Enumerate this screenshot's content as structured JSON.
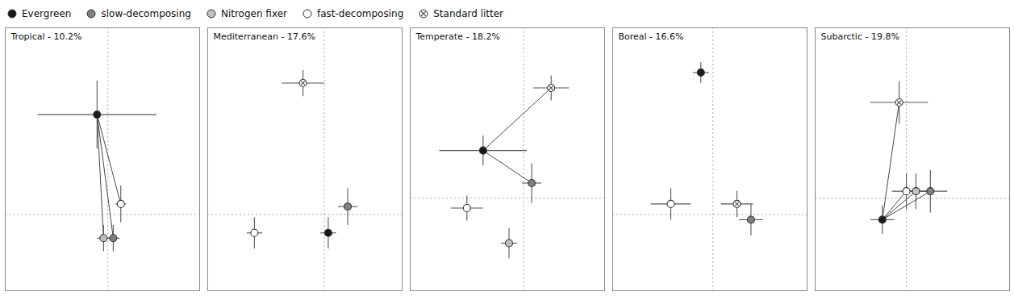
{
  "chart_data": [
    {
      "type": "scatter",
      "title": "Tropical - 10.2%",
      "xlim": [
        -0.85,
        0.95
      ],
      "ylim": [
        -0.55,
        0.45
      ],
      "tick_labels": false,
      "legend": "upper left",
      "hline": -0.26,
      "vline": 0.1,
      "series": [
        {
          "name": "Evergreen",
          "color": "#1a1a1a",
          "marker": "circle",
          "x": [
            0.0
          ],
          "values": [
            0.12
          ],
          "xerr": [
            0.55
          ],
          "yerr": [
            0.13
          ]
        },
        {
          "name": "slow-decomposing",
          "color": "#808080",
          "marker": "circle",
          "x": [
            0.15
          ],
          "values": [
            -0.35
          ],
          "xerr": [
            0.06
          ],
          "yerr": [
            0.05
          ]
        },
        {
          "name": "Nitrogen fixer",
          "color": "#c0c0c0",
          "marker": "circle",
          "x": [
            0.06
          ],
          "values": [
            -0.35
          ],
          "xerr": [
            0.06
          ],
          "yerr": [
            0.05
          ]
        },
        {
          "name": "fast-decomposing",
          "color": "#ffffff",
          "marker": "circle",
          "x": [
            0.22
          ],
          "values": [
            -0.22
          ],
          "xerr": [
            0.05
          ],
          "yerr": [
            0.07
          ]
        }
      ],
      "links": [
        [
          "Evergreen",
          "slow-decomposing"
        ],
        [
          "Evergreen",
          "Nitrogen fixer"
        ],
        [
          "Evergreen",
          "fast-decomposing"
        ]
      ]
    },
    {
      "type": "scatter",
      "title": "Mediterranean - 17.6%",
      "xlim": [
        -0.42,
        0.58
      ],
      "ylim": [
        -0.55,
        0.45
      ],
      "tick_labels": false,
      "legend": "upper left",
      "hline": -0.26,
      "vline": 0.18,
      "series": [
        {
          "name": "Evergreen",
          "color": "#1a1a1a",
          "marker": "circle",
          "x": [
            0.2
          ],
          "values": [
            -0.33
          ],
          "xerr": [
            0.04
          ],
          "yerr": [
            0.06
          ]
        },
        {
          "name": "slow-decomposing",
          "color": "#808080",
          "marker": "circle",
          "x": [
            0.3
          ],
          "values": [
            -0.23
          ],
          "xerr": [
            0.05
          ],
          "yerr": [
            0.07
          ]
        },
        {
          "name": "fast-decomposing",
          "color": "#ffffff",
          "marker": "circle",
          "x": [
            -0.18
          ],
          "values": [
            -0.33
          ],
          "xerr": [
            0.04
          ],
          "yerr": [
            0.06
          ]
        },
        {
          "name": "Standard litter",
          "color": "#ffffff",
          "marker": "circle-x",
          "x": [
            0.07
          ],
          "values": [
            0.24
          ],
          "xerr": [
            0.11
          ],
          "yerr": [
            0.05
          ]
        }
      ],
      "links": []
    },
    {
      "type": "scatter",
      "title": "Temperate - 18.2%",
      "xlim": [
        -0.65,
        0.55
      ],
      "ylim": [
        -0.63,
        0.42
      ],
      "tick_labels": false,
      "legend": "upper left",
      "hline": -0.26,
      "vline": 0.05,
      "series": [
        {
          "name": "Evergreen",
          "color": "#1a1a1a",
          "marker": "circle",
          "x": [
            -0.2
          ],
          "values": [
            -0.07
          ],
          "xerr": [
            0.27
          ],
          "yerr": [
            0.06
          ]
        },
        {
          "name": "slow-decomposing",
          "color": "#808080",
          "marker": "circle",
          "x": [
            0.1
          ],
          "values": [
            -0.2
          ],
          "xerr": [
            0.06
          ],
          "yerr": [
            0.08
          ]
        },
        {
          "name": "Nitrogen fixer",
          "color": "#c0c0c0",
          "marker": "circle",
          "x": [
            -0.04
          ],
          "values": [
            -0.44
          ],
          "xerr": [
            0.05
          ],
          "yerr": [
            0.06
          ]
        },
        {
          "name": "fast-decomposing",
          "color": "#ffffff",
          "marker": "circle",
          "x": [
            -0.3
          ],
          "values": [
            -0.3
          ],
          "xerr": [
            0.1
          ],
          "yerr": [
            0.05
          ]
        },
        {
          "name": "Standard litter",
          "color": "#ffffff",
          "marker": "circle-x",
          "x": [
            0.22
          ],
          "values": [
            0.18
          ],
          "xerr": [
            0.11
          ],
          "yerr": [
            0.05
          ]
        }
      ],
      "links": [
        [
          "Evergreen",
          "slow-decomposing"
        ],
        [
          "Evergreen",
          "Standard litter"
        ]
      ]
    },
    {
      "type": "scatter",
      "title": "Boreal - 16.6%",
      "xlim": [
        -0.42,
        0.55
      ],
      "ylim": [
        -0.55,
        0.45
      ],
      "tick_labels": false,
      "legend": "upper left",
      "hline": -0.26,
      "vline": 0.08,
      "series": [
        {
          "name": "Evergreen",
          "color": "#1a1a1a",
          "marker": "circle",
          "x": [
            0.02
          ],
          "values": [
            0.28
          ],
          "xerr": [
            0.04
          ],
          "yerr": [
            0.04
          ]
        },
        {
          "name": "slow-decomposing",
          "color": "#808080",
          "marker": "circle",
          "x": [
            0.27
          ],
          "values": [
            -0.28
          ],
          "xerr": [
            0.06
          ],
          "yerr": [
            0.06
          ]
        },
        {
          "name": "fast-decomposing",
          "color": "#ffffff",
          "marker": "circle",
          "x": [
            -0.13
          ],
          "values": [
            -0.22
          ],
          "xerr": [
            0.1
          ],
          "yerr": [
            0.06
          ]
        },
        {
          "name": "Standard litter",
          "color": "#ffffff",
          "marker": "circle-x",
          "x": [
            0.2
          ],
          "values": [
            -0.22
          ],
          "xerr": [
            0.08
          ],
          "yerr": [
            0.05
          ]
        }
      ],
      "links": []
    },
    {
      "type": "scatter",
      "title": "Subarctic - 19.8%",
      "xlim": [
        -0.18,
        0.63
      ],
      "ylim": [
        -0.52,
        0.22
      ],
      "tick_labels": false,
      "legend": "upper left",
      "hline": -0.26,
      "vline": 0.2,
      "series": [
        {
          "name": "Evergreen",
          "color": "#1a1a1a",
          "marker": "circle",
          "x": [
            0.1
          ],
          "values": [
            -0.32
          ],
          "xerr": [
            0.05
          ],
          "yerr": [
            0.04
          ]
        },
        {
          "name": "slow-decomposing",
          "color": "#808080",
          "marker": "circle",
          "x": [
            0.3
          ],
          "values": [
            -0.24
          ],
          "xerr": [
            0.07
          ],
          "yerr": [
            0.06
          ]
        },
        {
          "name": "Nitrogen fixer",
          "color": "#c0c0c0",
          "marker": "circle",
          "x": [
            0.24
          ],
          "values": [
            -0.24
          ],
          "xerr": [
            0.06
          ],
          "yerr": [
            0.05
          ]
        },
        {
          "name": "fast-decomposing",
          "color": "#ffffff",
          "marker": "circle",
          "x": [
            0.2
          ],
          "values": [
            -0.24
          ],
          "xerr": [
            0.06
          ],
          "yerr": [
            0.05
          ]
        },
        {
          "name": "Standard litter",
          "color": "#ffffff",
          "marker": "circle-x",
          "x": [
            0.17
          ],
          "values": [
            0.01
          ],
          "xerr": [
            0.12
          ],
          "yerr": [
            0.06
          ]
        }
      ],
      "links": [
        [
          "Evergreen",
          "slow-decomposing"
        ],
        [
          "Evergreen",
          "Nitrogen fixer"
        ],
        [
          "Evergreen",
          "fast-decomposing"
        ],
        [
          "Evergreen",
          "Standard litter"
        ]
      ]
    }
  ]
}
